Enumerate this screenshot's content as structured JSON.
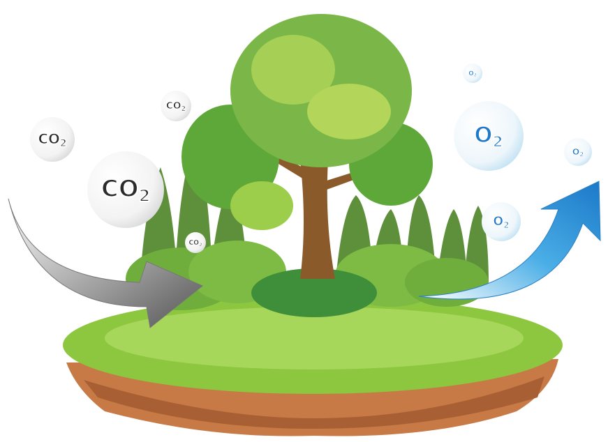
{
  "co2_bubbles": [
    {
      "main": "CO",
      "sub": "2"
    },
    {
      "main": "CO",
      "sub": "2"
    },
    {
      "main": "CO",
      "sub": "2"
    },
    {
      "main": "CO",
      "sub": "2"
    }
  ],
  "o2_bubbles": [
    {
      "main": "O",
      "sub": "2"
    },
    {
      "main": "O",
      "sub": "2"
    },
    {
      "main": "O",
      "sub": "2"
    },
    {
      "main": "O",
      "sub": "2"
    }
  ]
}
